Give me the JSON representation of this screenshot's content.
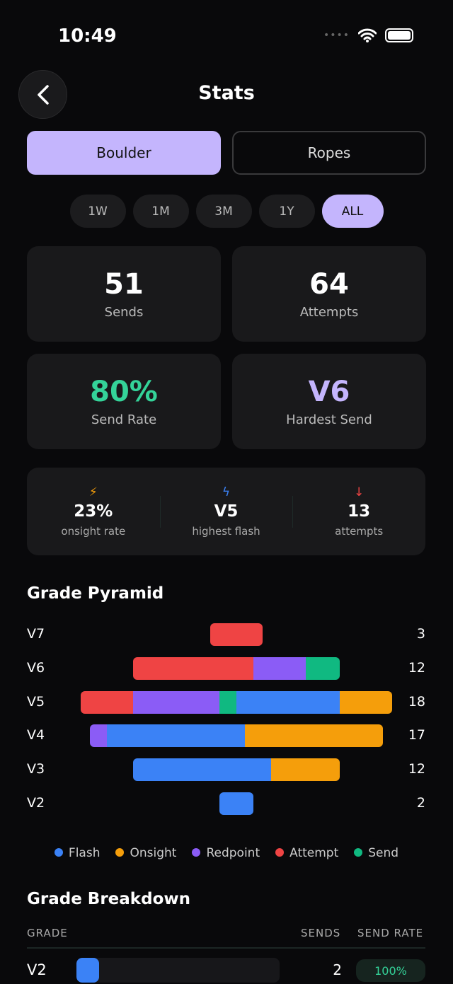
{
  "status_bar": {
    "time": "10:49"
  },
  "header": {
    "title": "Stats"
  },
  "tabs": [
    {
      "label": "Boulder",
      "active": true
    },
    {
      "label": "Ropes",
      "active": false
    }
  ],
  "ranges": [
    {
      "label": "1W"
    },
    {
      "label": "1M"
    },
    {
      "label": "3M"
    },
    {
      "label": "1Y"
    },
    {
      "label": "ALL",
      "active": true
    }
  ],
  "cards": [
    {
      "value": "51",
      "label": "Sends",
      "color": "#ffffff"
    },
    {
      "value": "64",
      "label": "Attempts",
      "color": "#ffffff"
    },
    {
      "value": "80%",
      "label": "Send Rate",
      "color": "#34d399"
    },
    {
      "value": "V6",
      "label": "Hardest Send",
      "color": "#c4b5fd"
    }
  ],
  "mini_stats": [
    {
      "icon": "bolt-icon",
      "icon_color": "#f59e0b",
      "value": "23%",
      "label": "onsight rate"
    },
    {
      "icon": "flash-icon",
      "icon_color": "#3b82f6",
      "value": "V5",
      "label": "highest flash"
    },
    {
      "icon": "arrow-down-icon",
      "icon_color": "#ef4444",
      "value": "13",
      "label": "attempts"
    }
  ],
  "pyramid": {
    "title": "Grade Pyramid",
    "colors": {
      "Flash": "#3b82f6",
      "Onsight": "#f59e0b",
      "Redpoint": "#8b5cf6",
      "Attempt": "#ef4444",
      "Send": "#10b981"
    },
    "rows": [
      {
        "grade": "V7",
        "total": "3",
        "segments": [
          [
            "Attempt",
            3
          ]
        ]
      },
      {
        "grade": "V6",
        "total": "12",
        "segments": [
          [
            "Attempt",
            7
          ],
          [
            "Redpoint",
            3
          ],
          [
            "Send",
            2
          ]
        ]
      },
      {
        "grade": "V5",
        "total": "18",
        "segments": [
          [
            "Attempt",
            3
          ],
          [
            "Redpoint",
            5
          ],
          [
            "Send",
            1
          ],
          [
            "Flash",
            6
          ],
          [
            "Onsight",
            3
          ]
        ]
      },
      {
        "grade": "V4",
        "total": "17",
        "segments": [
          [
            "Redpoint",
            1
          ],
          [
            "Flash",
            8
          ],
          [
            "Onsight",
            8
          ]
        ]
      },
      {
        "grade": "V3",
        "total": "12",
        "segments": [
          [
            "Flash",
            8
          ],
          [
            "Onsight",
            4
          ]
        ]
      },
      {
        "grade": "V2",
        "total": "2",
        "segments": [
          [
            "Flash",
            2
          ]
        ]
      }
    ],
    "legend": [
      "Flash",
      "Onsight",
      "Redpoint",
      "Attempt",
      "Send"
    ]
  },
  "breakdown": {
    "title": "Grade Breakdown",
    "columns": [
      "GRADE",
      "SENDS",
      "SEND RATE"
    ],
    "rows": [
      {
        "grade": "V2",
        "sends": "2",
        "send_rate": "100%",
        "bar_fraction": 0.11
      }
    ]
  }
}
